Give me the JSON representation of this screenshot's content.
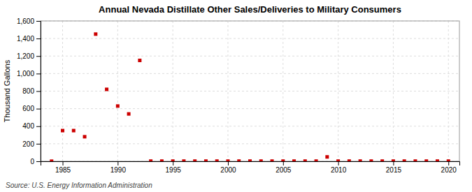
{
  "chart_data": {
    "type": "scatter",
    "title": "Annual Nevada Distillate Other Sales/Deliveries to Military Consumers",
    "y_label": "Thousand Gallons",
    "annotations": [
      "Source: U.S. Energy Information Administration"
    ],
    "x": [
      1984,
      1985,
      1986,
      1987,
      1988,
      1989,
      1990,
      1991,
      1992,
      1993,
      1994,
      1995,
      1996,
      1997,
      1998,
      1999,
      2000,
      2001,
      2002,
      2003,
      2004,
      2005,
      2006,
      2007,
      2008,
      2009,
      2010,
      2011,
      2012,
      2013,
      2014,
      2015,
      2016,
      2017,
      2018,
      2019,
      2020
    ],
    "values": [
      1,
      350,
      350,
      280,
      1450,
      820,
      630,
      540,
      1150,
      2,
      2,
      2,
      2,
      2,
      2,
      2,
      2,
      2,
      2,
      2,
      2,
      2,
      2,
      2,
      2,
      50,
      2,
      2,
      2,
      2,
      2,
      2,
      2,
      2,
      2,
      2,
      2
    ],
    "color": "#cc0000",
    "marker": "square",
    "xlim": [
      1983,
      2021
    ],
    "ylim": [
      0,
      1600
    ],
    "xticks": [
      1985,
      1990,
      1995,
      2000,
      2005,
      2010,
      2015,
      2020
    ],
    "yticks": [
      0,
      200,
      400,
      600,
      800,
      {
        "value": 1000,
        "label": "1,000"
      },
      {
        "value": 1200,
        "label": "1,200"
      },
      {
        "value": 1400,
        "label": "1,400"
      },
      {
        "value": 1600,
        "label": "1,600"
      }
    ],
    "grid": true
  }
}
